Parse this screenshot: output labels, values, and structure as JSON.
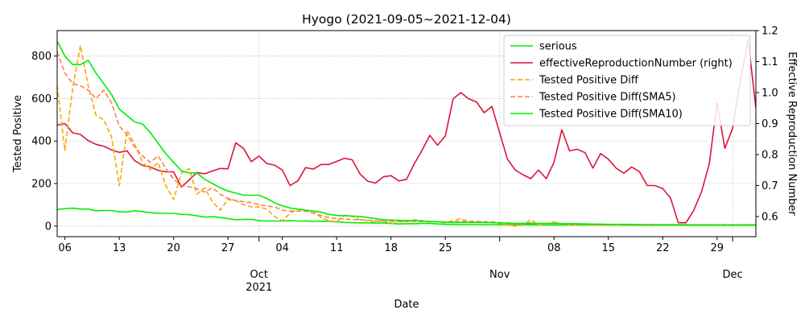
{
  "chart_data": {
    "type": "line",
    "title": "Hyogo (2021-09-05~2021-12-04)",
    "xlabel": "Date",
    "ylabel": "Tested Positive",
    "ylabel_right": "Effective Reproduction Number",
    "x_start": "2021-09-05",
    "x_end": "2021-12-04",
    "xlim": [
      "2021-09-05",
      "2021-12-04"
    ],
    "ylim": [
      -50,
      920
    ],
    "ylim_right": [
      0.535,
      1.2
    ],
    "y_ticks": [
      0,
      200,
      400,
      600,
      800
    ],
    "y_ticks_right": [
      "0.6",
      "0.7",
      "0.8",
      "0.9",
      "1.0",
      "1.1",
      "1.2"
    ],
    "x_ticks": [
      {
        "date": "2021-09-06",
        "label": "06",
        "sub": ""
      },
      {
        "date": "2021-09-13",
        "label": "13",
        "sub": ""
      },
      {
        "date": "2021-09-20",
        "label": "20",
        "sub": ""
      },
      {
        "date": "2021-09-27",
        "label": "27",
        "sub": ""
      },
      {
        "date": "2021-10-01",
        "label": "Oct",
        "sub": "2021"
      },
      {
        "date": "2021-10-04",
        "label": "04",
        "sub": ""
      },
      {
        "date": "2021-10-11",
        "label": "11",
        "sub": ""
      },
      {
        "date": "2021-10-18",
        "label": "18",
        "sub": ""
      },
      {
        "date": "2021-10-25",
        "label": "25",
        "sub": ""
      },
      {
        "date": "2021-11-01",
        "label": "Nov",
        "sub": ""
      },
      {
        "date": "2021-11-08",
        "label": "08",
        "sub": ""
      },
      {
        "date": "2021-11-15",
        "label": "15",
        "sub": ""
      },
      {
        "date": "2021-11-22",
        "label": "22",
        "sub": ""
      },
      {
        "date": "2021-11-29",
        "label": "29",
        "sub": ""
      },
      {
        "date": "2021-12-01",
        "label": "Dec",
        "sub": ""
      }
    ],
    "grid": true,
    "legend_position": "top-right",
    "series": [
      {
        "name": "serious",
        "axis": "left",
        "color": "#00ee00",
        "dash": "solid",
        "values": [
          78,
          82,
          84,
          80,
          80,
          72,
          73,
          73,
          68,
          66,
          72,
          68,
          63,
          60,
          60,
          60,
          55,
          54,
          48,
          42,
          44,
          40,
          35,
          30,
          31,
          32,
          25,
          24,
          24,
          24,
          25,
          24,
          24,
          22,
          23,
          22,
          20,
          17,
          16,
          15,
          15,
          14,
          14,
          12,
          10,
          11,
          11,
          12,
          12,
          10,
          8,
          8,
          7,
          7,
          7,
          7,
          7,
          6,
          6,
          6,
          6,
          6,
          5,
          5,
          5,
          5,
          5,
          5,
          5,
          5,
          5,
          5,
          5,
          4,
          4,
          4,
          4,
          4,
          4,
          4,
          4,
          4,
          4,
          4,
          4,
          4,
          4,
          4,
          4,
          4,
          4
        ]
      },
      {
        "name": "effectiveReproductionNumber (right)",
        "axis": "right",
        "color": "#dc143c",
        "dash": "solid",
        "values": [
          0.895,
          0.9,
          0.87,
          0.865,
          0.845,
          0.833,
          0.827,
          0.815,
          0.807,
          0.812,
          0.78,
          0.765,
          0.76,
          0.749,
          0.744,
          0.744,
          0.695,
          0.718,
          0.742,
          0.738,
          0.747,
          0.755,
          0.754,
          0.838,
          0.82,
          0.777,
          0.795,
          0.771,
          0.766,
          0.75,
          0.7,
          0.715,
          0.758,
          0.753,
          0.768,
          0.768,
          0.778,
          0.788,
          0.783,
          0.738,
          0.714,
          0.708,
          0.728,
          0.732,
          0.715,
          0.72,
          0.77,
          0.814,
          0.862,
          0.83,
          0.86,
          0.98,
          1.0,
          0.98,
          0.97,
          0.935,
          0.955,
          0.87,
          0.785,
          0.75,
          0.735,
          0.722,
          0.75,
          0.722,
          0.775,
          0.88,
          0.812,
          0.817,
          0.806,
          0.756,
          0.803,
          0.785,
          0.756,
          0.74,
          0.76,
          0.745,
          0.7,
          0.7,
          0.69,
          0.66,
          0.58,
          0.58,
          0.62,
          0.68,
          0.77,
          0.967,
          0.82,
          0.885,
          1.04,
          1.17,
          0.95
        ]
      },
      {
        "name": "Tested Positive Diff",
        "axis": "left",
        "color": "#ffa500",
        "dash": "dashed",
        "values": [
          662,
          356,
          650,
          850,
          660,
          522,
          500,
          420,
          190,
          450,
          385,
          300,
          265,
          300,
          190,
          125,
          250,
          270,
          150,
          180,
          115,
          75,
          125,
          120,
          100,
          90,
          90,
          80,
          45,
          25,
          60,
          80,
          70,
          70,
          40,
          25,
          20,
          50,
          45,
          30,
          25,
          20,
          25,
          10,
          20,
          20,
          30,
          25,
          20,
          20,
          15,
          25,
          35,
          20,
          20,
          20,
          20,
          10,
          5,
          0,
          5,
          30,
          5,
          10,
          20,
          10,
          5,
          5,
          10,
          5,
          5,
          5,
          5,
          5,
          5,
          5,
          5,
          5,
          5,
          5,
          5,
          5,
          5,
          5,
          5,
          5,
          5,
          5,
          5,
          5,
          5
        ]
      },
      {
        "name": "Tested Positive Diff(SMA5)",
        "axis": "left",
        "color": "#ff7f50",
        "dash": "dashed",
        "values": [
          820,
          720,
          670,
          660,
          640,
          600,
          640,
          580,
          470,
          430,
          370,
          330,
          300,
          330,
          270,
          220,
          190,
          185,
          175,
          160,
          180,
          150,
          130,
          120,
          115,
          110,
          100,
          95,
          90,
          75,
          70,
          70,
          70,
          60,
          50,
          40,
          35,
          35,
          30,
          30,
          28,
          25,
          22,
          22,
          22,
          22,
          22,
          20,
          20,
          20,
          20,
          20,
          22,
          22,
          22,
          20,
          20,
          15,
          12,
          10,
          12,
          15,
          12,
          12,
          14,
          12,
          10,
          10,
          8,
          7,
          6,
          6,
          6,
          6,
          6,
          6,
          6,
          6,
          6,
          6,
          6,
          6,
          6,
          6,
          6,
          6,
          6,
          6,
          6,
          6,
          6
        ]
      },
      {
        "name": "Tested Positive Diff(SMA10)",
        "axis": "left",
        "color": "#00ee00",
        "dash": "solid",
        "values": [
          870,
          800,
          760,
          760,
          780,
          720,
          670,
          620,
          550,
          520,
          490,
          480,
          440,
          390,
          340,
          300,
          260,
          250,
          250,
          220,
          200,
          180,
          165,
          155,
          145,
          145,
          145,
          130,
          110,
          95,
          85,
          80,
          75,
          70,
          65,
          55,
          50,
          48,
          47,
          45,
          40,
          35,
          30,
          28,
          27,
          26,
          25,
          24,
          22,
          20,
          18,
          17,
          17,
          17,
          17,
          17,
          16,
          15,
          14,
          13,
          12,
          12,
          12,
          12,
          12,
          11,
          11,
          11,
          10,
          9,
          9,
          8,
          8,
          8,
          8,
          7,
          7,
          7,
          6,
          6,
          6,
          6,
          5,
          5,
          5,
          5,
          5,
          5,
          5,
          5,
          5
        ]
      }
    ]
  }
}
